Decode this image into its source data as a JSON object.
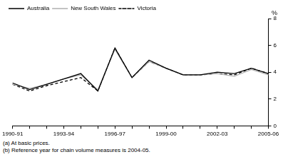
{
  "chart_data": {
    "type": "line",
    "y_label": "%",
    "categories": [
      "1990-91",
      null,
      null,
      "1993-94",
      null,
      null,
      "1996-97",
      null,
      null,
      "1999-00",
      null,
      null,
      "2002-03",
      null,
      null,
      "2005-06"
    ],
    "series": [
      {
        "name": "Australia",
        "color": "#000000",
        "line_style": "solid",
        "values": [
          3.2,
          2.7,
          3.1,
          3.5,
          3.9,
          2.6,
          5.8,
          3.6,
          4.9,
          4.3,
          3.8,
          3.8,
          4.0,
          3.9,
          4.3,
          3.9
        ]
      },
      {
        "name": "New South Wales",
        "color": "#b0b0b0",
        "line_style": "solid",
        "values": [
          3.1,
          2.8,
          3.1,
          3.5,
          3.8,
          2.7,
          5.7,
          3.6,
          4.8,
          4.3,
          3.8,
          3.8,
          3.9,
          3.7,
          4.2,
          3.8
        ]
      },
      {
        "name": "Victoria",
        "color": "#000000",
        "line_style": "dashed",
        "values": [
          3.1,
          2.6,
          3.0,
          3.3,
          3.6,
          2.6,
          5.8,
          3.6,
          4.8,
          4.3,
          3.8,
          3.8,
          3.9,
          3.8,
          4.3,
          3.9
        ]
      }
    ],
    "ylim": [
      0,
      8
    ],
    "yticks": [
      0,
      2,
      4,
      6,
      8
    ],
    "grid": false,
    "legend": "top-left",
    "footnotes": [
      "(a) At basic prices.",
      "(b) Reference year for chain volume measures is 2004-05."
    ]
  }
}
